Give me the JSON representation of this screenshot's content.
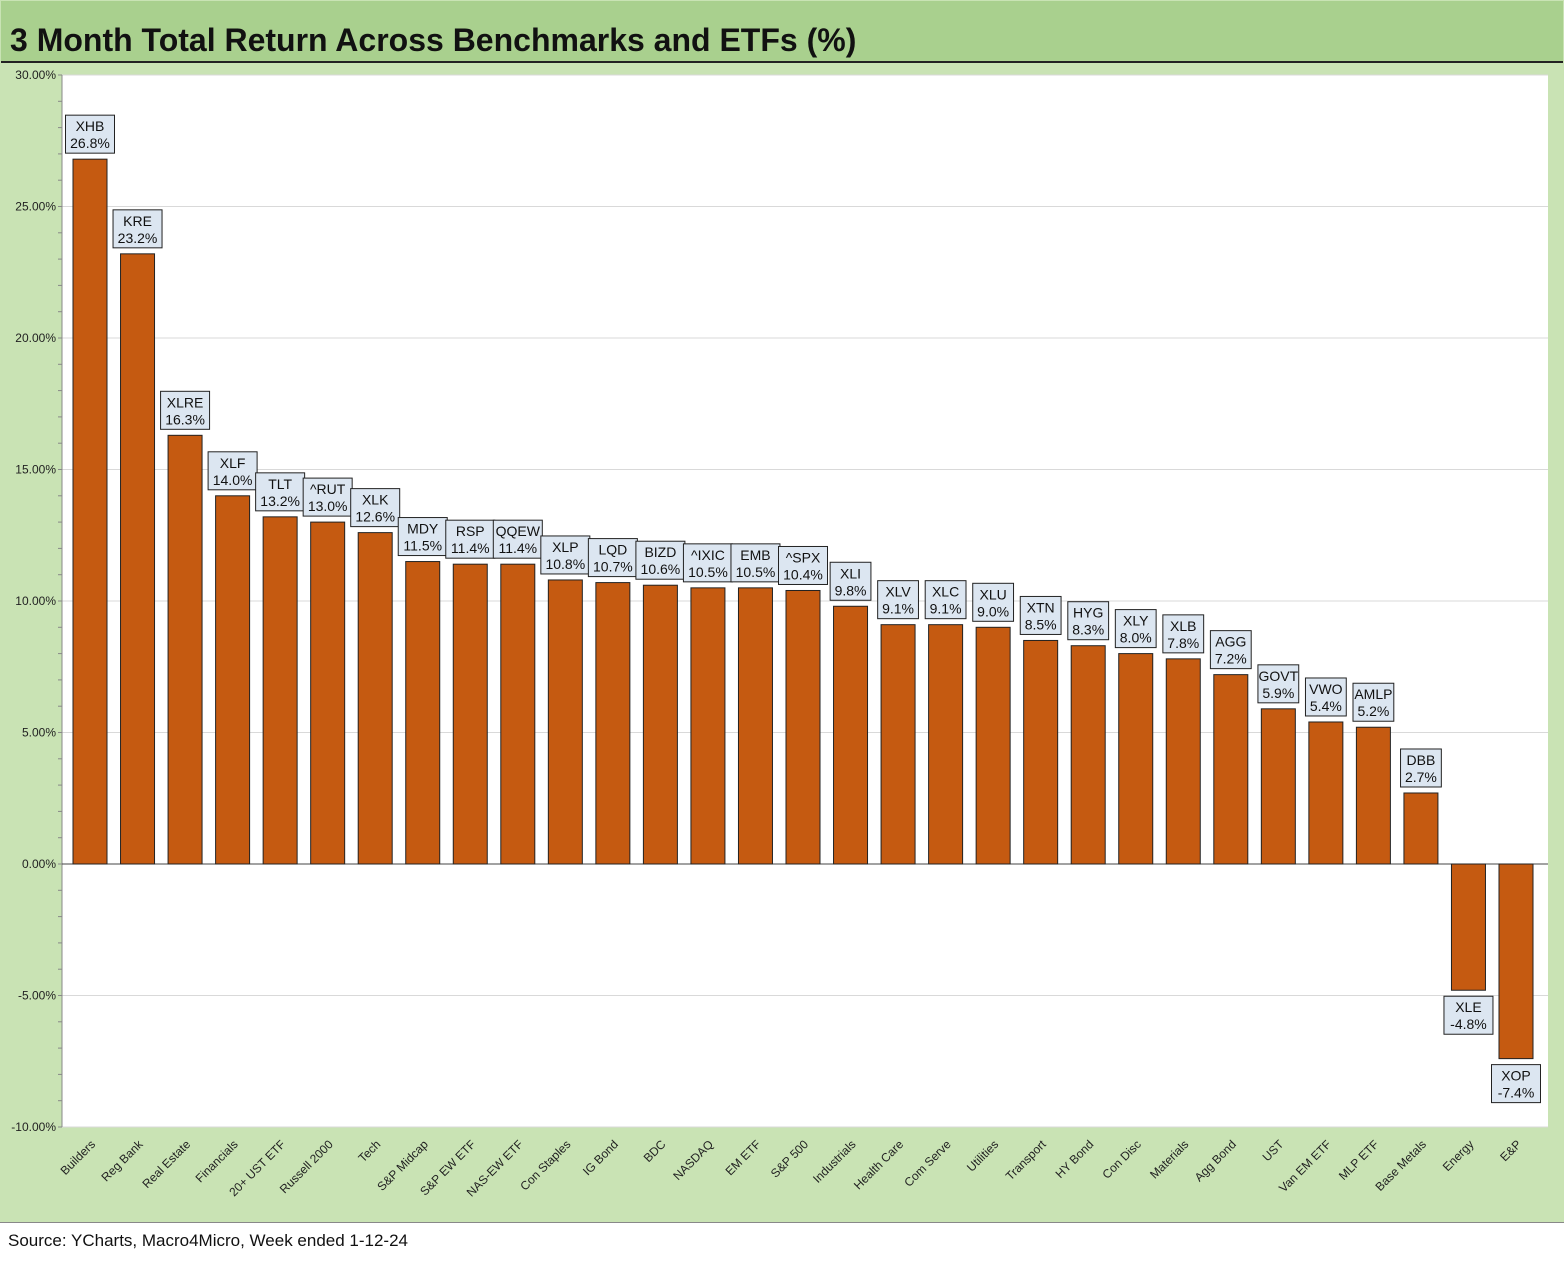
{
  "title": "3 Month Total Return Across Benchmarks and ETFs (%)",
  "source": "Source: YCharts, Macro4Micro, Week ended 1-12-24",
  "colors": {
    "bar": "#c55a11",
    "plot_background": "#ffffff",
    "frame_background": "#c9e3b4",
    "title_background": "#a9d08e",
    "label_box": "#dce6f1",
    "gridline": "#d9d9d9"
  },
  "chart_data": {
    "type": "bar",
    "title": "3 Month Total Return Across Benchmarks and ETFs (%)",
    "xlabel": "",
    "ylabel": "",
    "ylim": [
      -10,
      30
    ],
    "yticks": [
      30,
      25,
      20,
      15,
      10,
      5,
      0,
      -5,
      -10
    ],
    "ytick_labels": [
      "30.00%",
      "25.00%",
      "20.00%",
      "15.00%",
      "10.00%",
      "5.00%",
      "0.00%",
      "-5.00%",
      "-10.00%"
    ],
    "grid": true,
    "categories": [
      "Builders",
      "Reg Bank",
      "Real Estate",
      "Financials",
      "20+ UST ETF",
      "Russell 2000",
      "Tech",
      "S&P Midcap",
      "S&P EW ETF",
      "NAS-EW ETF",
      "Con Staples",
      "IG Bond",
      "BDC",
      "NASDAQ",
      "EM ETF",
      "S&P 500",
      "Industrials",
      "Health Care",
      "Com Serve",
      "Utilities",
      "Transport",
      "HY Bond",
      "Con Disc",
      "Materials",
      "Agg Bond",
      "UST",
      "Van EM ETF",
      "MLP ETF",
      "Base Metals",
      "Energy",
      "E&P"
    ],
    "tickers": [
      "XHB",
      "KRE",
      "XLRE",
      "XLF",
      "TLT",
      "^RUT",
      "XLK",
      "MDY",
      "RSP",
      "QQEW",
      "XLP",
      "LQD",
      "BIZD",
      "^IXIC",
      "EMB",
      "^SPX",
      "XLI",
      "XLV",
      "XLC",
      "XLU",
      "XTN",
      "HYG",
      "XLY",
      "XLB",
      "AGG",
      "GOVT",
      "VWO",
      "AMLP",
      "DBB",
      "XLE",
      "XOP"
    ],
    "values": [
      26.8,
      23.2,
      16.3,
      14.0,
      13.2,
      13.0,
      12.6,
      11.5,
      11.4,
      11.4,
      10.8,
      10.7,
      10.6,
      10.5,
      10.5,
      10.4,
      9.8,
      9.1,
      9.1,
      9.0,
      8.5,
      8.3,
      8.0,
      7.8,
      7.2,
      5.9,
      5.4,
      5.2,
      2.7,
      -4.8,
      -7.4
    ],
    "value_labels": [
      "26.8%",
      "23.2%",
      "16.3%",
      "14.0%",
      "13.2%",
      "13.0%",
      "12.6%",
      "11.5%",
      "11.4%",
      "11.4%",
      "10.8%",
      "10.7%",
      "10.6%",
      "10.5%",
      "10.5%",
      "10.4%",
      "9.8%",
      "9.1%",
      "9.1%",
      "9.0%",
      "8.5%",
      "8.3%",
      "8.0%",
      "7.8%",
      "7.2%",
      "5.9%",
      "5.4%",
      "5.2%",
      "2.7%",
      "-4.8%",
      "-7.4%"
    ]
  }
}
